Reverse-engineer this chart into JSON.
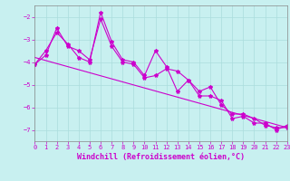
{
  "xlabel": "Windchill (Refroidissement éolien,°C)",
  "background_color": "#c8f0f0",
  "line_color": "#cc00cc",
  "xlim": [
    0,
    23
  ],
  "ylim": [
    -7.5,
    -1.5
  ],
  "yticks": [
    -7,
    -6,
    -5,
    -4,
    -3,
    -2
  ],
  "xticks": [
    0,
    1,
    2,
    3,
    4,
    5,
    6,
    7,
    8,
    9,
    10,
    11,
    12,
    13,
    14,
    15,
    16,
    17,
    18,
    19,
    20,
    21,
    22,
    23
  ],
  "series1_x": [
    0,
    1,
    2,
    3,
    4,
    5,
    6,
    7,
    8,
    9,
    10,
    11,
    12,
    13,
    14,
    15,
    16,
    17,
    18,
    19,
    20,
    21,
    22,
    23
  ],
  "series1_y": [
    -4.1,
    -3.5,
    -2.7,
    -3.2,
    -3.8,
    -4.0,
    -1.8,
    -3.1,
    -3.9,
    -4.0,
    -4.6,
    -3.5,
    -4.2,
    -5.3,
    -4.8,
    -5.3,
    -5.1,
    -5.9,
    -6.3,
    -6.3,
    -6.5,
    -6.8,
    -6.9,
    -6.9
  ],
  "series2_x": [
    0,
    1,
    2,
    3,
    4,
    5,
    6,
    7,
    8,
    9,
    10,
    11,
    12,
    13,
    14,
    15,
    16,
    17,
    18,
    19,
    20,
    21,
    22,
    23
  ],
  "series2_y": [
    -4.1,
    -3.7,
    -2.5,
    -3.3,
    -3.5,
    -3.9,
    -2.1,
    -3.3,
    -4.0,
    -4.1,
    -4.7,
    -4.6,
    -4.3,
    -4.4,
    -4.8,
    -5.5,
    -5.5,
    -5.7,
    -6.5,
    -6.4,
    -6.7,
    -6.7,
    -7.0,
    -6.8
  ],
  "trend_x": [
    0,
    23
  ],
  "trend_y": [
    -3.8,
    -6.9
  ],
  "marker": "*",
  "markersize": 3,
  "linewidth": 0.8,
  "grid_color": "#aadddd",
  "tick_color": "#cc00cc",
  "tick_labelsize": 5,
  "xlabel_fontsize": 6,
  "xlabel_color": "#cc00cc"
}
